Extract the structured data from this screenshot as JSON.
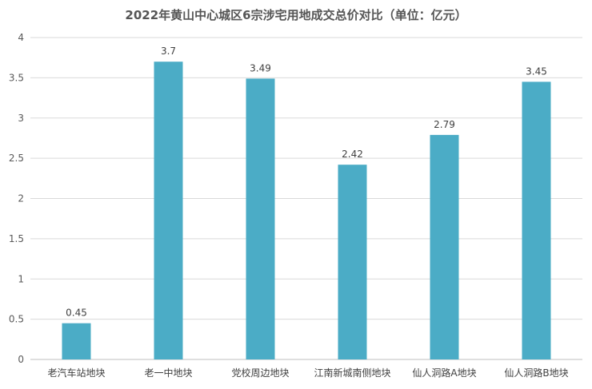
{
  "chart_data": {
    "type": "bar",
    "title": "2022年黄山中心城区6宗涉宅用地成交总价对比（单位：亿元）",
    "categories": [
      "老汽车站地块",
      "老一中地块",
      "党校周边地块",
      "江南新城南侧地块",
      "仙人洞路A地块",
      "仙人洞路B地块"
    ],
    "values": [
      0.45,
      3.7,
      3.49,
      2.42,
      2.79,
      3.45
    ],
    "data_labels": [
      "0.45",
      "3.7",
      "3.49",
      "2.42",
      "2.79",
      "3.45"
    ],
    "y_ticks": [
      "0",
      "0.5",
      "1",
      "1.5",
      "2",
      "2.5",
      "3",
      "3.5",
      "4"
    ],
    "ylim": [
      0,
      4
    ],
    "grid": true,
    "bar_color": "#4BACC6",
    "grid_color": "#D9D9D9",
    "xlabel": "",
    "ylabel": ""
  }
}
